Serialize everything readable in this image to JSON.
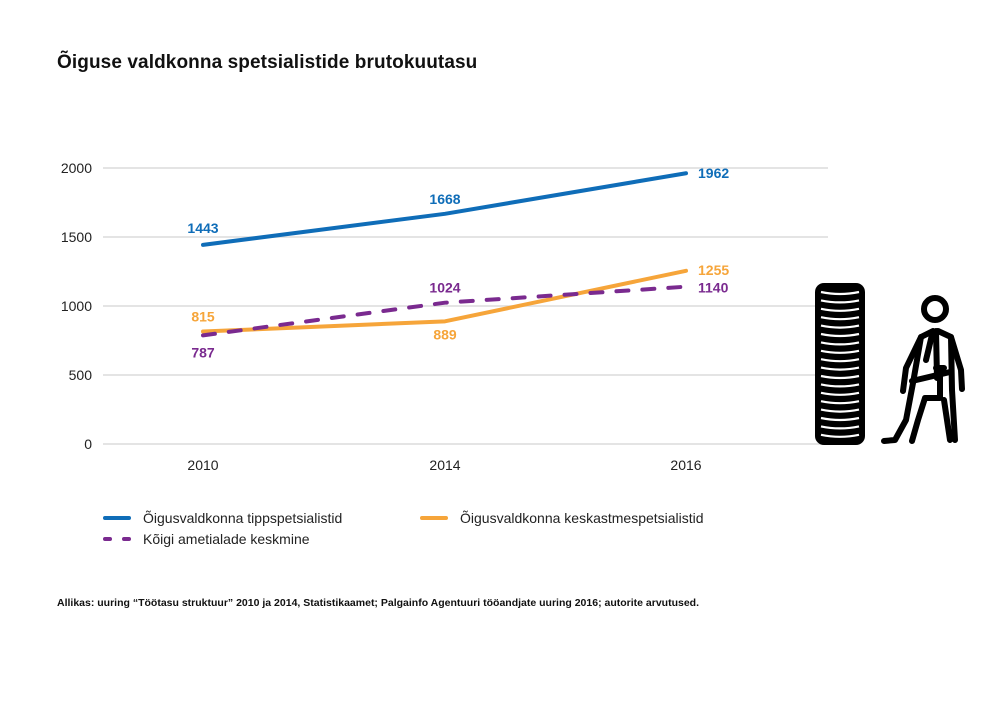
{
  "title": "Õiguse valdkonna spetsialistide brutokuutasu",
  "chart_data": {
    "type": "line",
    "title": "Õiguse valdkonna spetsialistide brutokuutasu",
    "xlabel": "",
    "ylabel": "",
    "x": [
      "2010",
      "2014",
      "2016"
    ],
    "ylim": [
      0,
      2000
    ],
    "yticks": [
      0,
      500,
      1000,
      1500,
      2000
    ],
    "grid": true,
    "legend_position": "bottom",
    "series": [
      {
        "name": "Õigusvaldkonna tippspetsialistid",
        "values": [
          1443,
          1668,
          1962
        ],
        "color": "#0f6db8",
        "style": "solid"
      },
      {
        "name": "Õigusvaldkonna keskastmespetsialistid",
        "values": [
          815,
          889,
          1255
        ],
        "color": "#f6a53a",
        "style": "solid"
      },
      {
        "name": "Kõigi ametialade keskmine",
        "values": [
          787,
          1024,
          1140
        ],
        "color": "#7a2a8f",
        "style": "dashed"
      }
    ]
  },
  "legend": [
    {
      "label": "Õigusvaldkonna tippspetsialistid",
      "color": "#0f6db8"
    },
    {
      "label": "Õigusvaldkonna keskastmespetsialistid",
      "color": "#f6a53a"
    },
    {
      "label": "Kõigi ametialade keskmine",
      "color": "#7a2a8f"
    }
  ],
  "icons": [
    "coin-stack-icon",
    "businessman-icon"
  ],
  "source": "Allikas: uuring “Töötasu struktuur” 2010 ja 2014, Statistikaamet; Palgainfo Agentuuri tööandjate uuring 2016; autorite arvutused."
}
